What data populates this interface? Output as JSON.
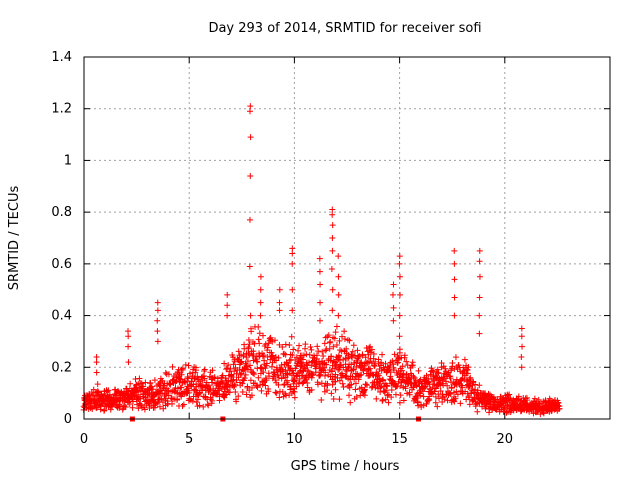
{
  "chart_data": {
    "type": "scatter",
    "title": "Day 293 of 2014, SRMTID for receiver sofi",
    "xlabel": "GPS time / hours",
    "ylabel": "SRMTID / TECUs",
    "xlim": [
      0,
      25
    ],
    "ylim": [
      0,
      1.4
    ],
    "x_ticks": [
      0,
      5,
      10,
      15,
      20
    ],
    "y_ticks": [
      0,
      0.2,
      0.4,
      0.6,
      0.8,
      1,
      1.2,
      1.4
    ],
    "x_tick_labels": [
      "0",
      "5",
      "10",
      "15",
      "20"
    ],
    "y_tick_labels": [
      "0",
      "0.2",
      "0.4",
      "0.6",
      "0.8",
      "1",
      "1.2",
      "1.4"
    ],
    "grid": true,
    "marker": "+",
    "series_color": "#ff0000",
    "data_gap_markers_x": [
      2.3,
      6.6,
      15.9
    ],
    "series": [
      {
        "name": "SRMTID",
        "profile_hours": [
          0,
          0.5,
          1,
          1.5,
          2,
          2.5,
          3,
          3.5,
          4,
          4.5,
          5,
          5.5,
          6,
          6.5,
          7,
          7.5,
          8,
          8.5,
          9,
          9.5,
          10,
          10.5,
          11,
          11.5,
          12,
          12.5,
          13,
          13.5,
          14,
          14.5,
          15,
          15.5,
          16,
          16.5,
          17,
          17.5,
          18,
          18.5,
          19,
          19.5,
          20,
          20.5,
          21,
          21.5,
          22,
          22.6
        ],
        "profile_typical": [
          0.06,
          0.08,
          0.08,
          0.07,
          0.08,
          0.1,
          0.09,
          0.1,
          0.12,
          0.14,
          0.13,
          0.12,
          0.12,
          0.13,
          0.16,
          0.2,
          0.22,
          0.22,
          0.2,
          0.18,
          0.2,
          0.18,
          0.17,
          0.2,
          0.22,
          0.2,
          0.19,
          0.18,
          0.16,
          0.14,
          0.18,
          0.14,
          0.12,
          0.12,
          0.13,
          0.14,
          0.16,
          0.1,
          0.07,
          0.06,
          0.06,
          0.06,
          0.05,
          0.05,
          0.05,
          0.05
        ],
        "spikes": [
          {
            "x": 0.6,
            "values": [
              0.22,
              0.24,
              0.18
            ]
          },
          {
            "x": 2.1,
            "values": [
              0.34,
              0.32,
              0.28,
              0.22
            ]
          },
          {
            "x": 3.5,
            "values": [
              0.45,
              0.42,
              0.38,
              0.34,
              0.3
            ]
          },
          {
            "x": 6.8,
            "values": [
              0.48,
              0.44,
              0.4
            ]
          },
          {
            "x": 7.9,
            "values": [
              1.21,
              1.19,
              1.09,
              0.94,
              0.77,
              0.59,
              0.4
            ]
          },
          {
            "x": 8.4,
            "values": [
              0.55,
              0.5,
              0.45,
              0.4
            ]
          },
          {
            "x": 9.3,
            "values": [
              0.5,
              0.45,
              0.42
            ]
          },
          {
            "x": 9.9,
            "values": [
              0.66,
              0.64,
              0.6,
              0.5,
              0.42
            ]
          },
          {
            "x": 11.2,
            "values": [
              0.62,
              0.57,
              0.52,
              0.45,
              0.38
            ]
          },
          {
            "x": 11.8,
            "values": [
              0.81,
              0.79,
              0.75,
              0.7,
              0.65,
              0.58,
              0.5,
              0.42
            ]
          },
          {
            "x": 12.1,
            "values": [
              0.63,
              0.55,
              0.48,
              0.4
            ]
          },
          {
            "x": 14.7,
            "values": [
              0.52,
              0.48,
              0.43,
              0.38
            ]
          },
          {
            "x": 15.0,
            "values": [
              0.63,
              0.6,
              0.55,
              0.48,
              0.4,
              0.32
            ]
          },
          {
            "x": 17.6,
            "values": [
              0.65,
              0.6,
              0.54,
              0.47,
              0.4
            ]
          },
          {
            "x": 18.8,
            "values": [
              0.65,
              0.61,
              0.55,
              0.47,
              0.4,
              0.33
            ]
          },
          {
            "x": 20.8,
            "values": [
              0.35,
              0.32,
              0.28,
              0.24,
              0.2
            ]
          }
        ]
      }
    ]
  }
}
